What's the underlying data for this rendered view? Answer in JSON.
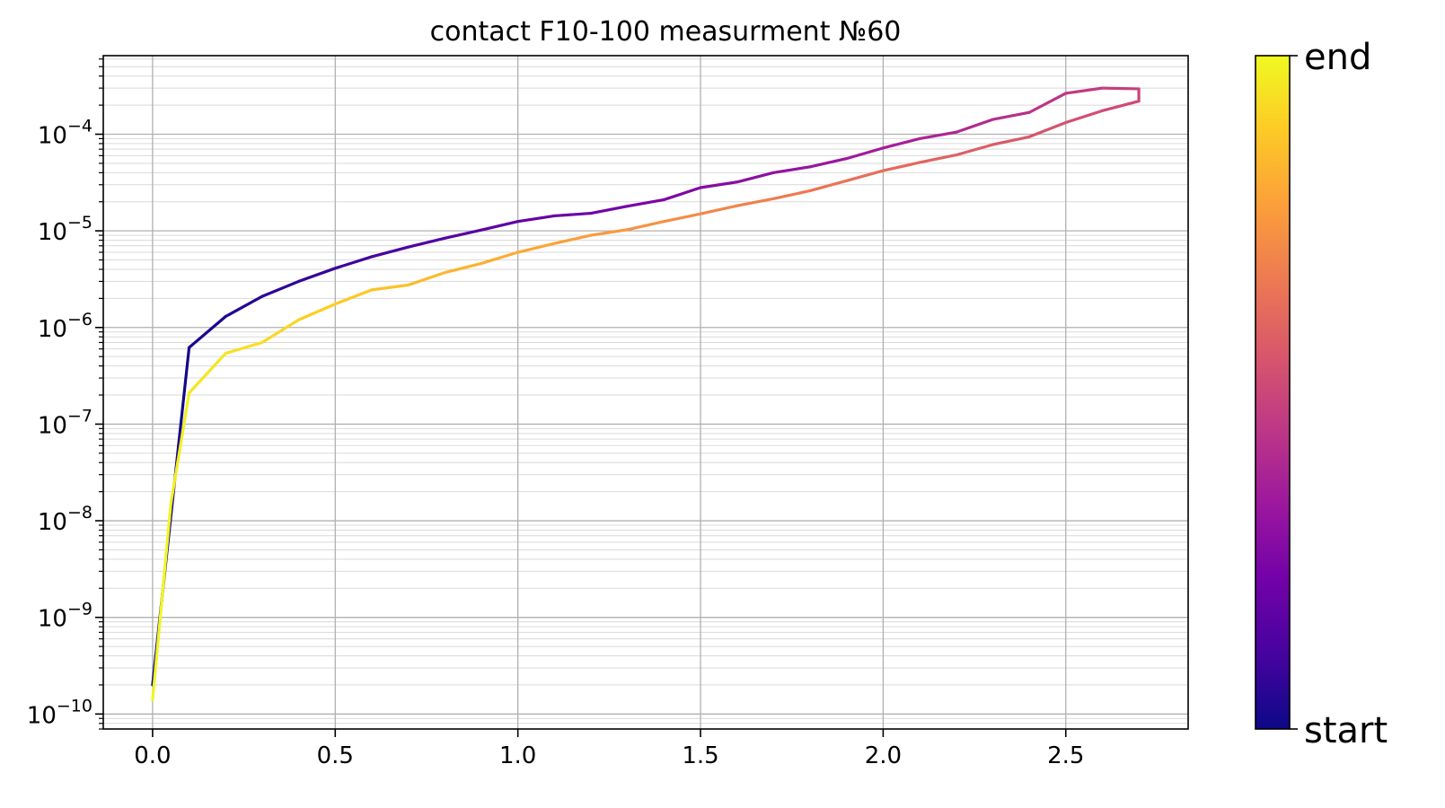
{
  "chart_data": {
    "type": "line",
    "title": "contact F10-100 measurment №60",
    "xlabel": "",
    "ylabel": "",
    "xlim": [
      -0.135,
      2.835
    ],
    "ylim": [
      7e-11,
      0.00065
    ],
    "yscale": "log",
    "grid": "major and minor",
    "x_ticks": [
      {
        "value": 0.0,
        "label": "0.0"
      },
      {
        "value": 0.5,
        "label": "0.5"
      },
      {
        "value": 1.0,
        "label": "1.0"
      },
      {
        "value": 1.5,
        "label": "1.5"
      },
      {
        "value": 2.0,
        "label": "2.0"
      },
      {
        "value": 2.5,
        "label": "2.5"
      }
    ],
    "y_ticks": [
      {
        "value": 1e-10,
        "base": "10",
        "exp": "−10"
      },
      {
        "value": 1e-09,
        "base": "10",
        "exp": "−9"
      },
      {
        "value": 1e-08,
        "base": "10",
        "exp": "−8"
      },
      {
        "value": 1e-07,
        "base": "10",
        "exp": "−7"
      },
      {
        "value": 1e-06,
        "base": "10",
        "exp": "−6"
      },
      {
        "value": 1e-05,
        "base": "10",
        "exp": "−5"
      },
      {
        "value": 0.0001,
        "base": "10",
        "exp": "−4"
      }
    ],
    "colormap": "plasma",
    "colormap_stops": [
      "#0d0887",
      "#46039f",
      "#7201a8",
      "#9c179e",
      "#bd3786",
      "#d8576b",
      "#ed7953",
      "#fb9f3a",
      "#fdca26",
      "#f0f921"
    ],
    "colorbar": {
      "start_label": "start",
      "end_label": "end"
    },
    "series": [
      {
        "x": [
          0.0,
          0.1,
          0.2,
          0.3,
          0.4,
          0.5,
          0.6,
          0.7,
          0.8,
          0.9,
          1.0,
          1.1,
          1.2,
          1.3,
          1.4,
          1.5,
          1.6,
          1.7,
          1.8,
          1.9,
          2.0,
          2.1,
          2.2,
          2.3,
          2.4,
          2.5,
          2.6,
          2.7,
          2.7,
          2.6,
          2.5,
          2.4,
          2.3,
          2.2,
          2.1,
          2.0,
          1.9,
          1.8,
          1.7,
          1.6,
          1.5,
          1.4,
          1.3,
          1.2,
          1.1,
          1.0,
          0.9,
          0.8,
          0.7,
          0.6,
          0.5,
          0.4,
          0.3,
          0.2,
          0.1,
          0.05,
          0.0
        ],
        "y": [
          2e-10,
          6.2e-07,
          1.3e-06,
          2.1e-06,
          3e-06,
          4.1e-06,
          5.4e-06,
          6.8e-06,
          8.4e-06,
          1.02e-05,
          1.25e-05,
          1.43e-05,
          1.52e-05,
          1.8e-05,
          2.1e-05,
          2.8e-05,
          3.2e-05,
          4e-05,
          4.6e-05,
          5.6e-05,
          7.2e-05,
          9e-05,
          0.000105,
          0.000142,
          0.000168,
          0.000265,
          0.0003,
          0.000295,
          0.00022,
          0.000175,
          0.000132,
          9.4e-05,
          7.8e-05,
          6.1e-05,
          5.1e-05,
          4.2e-05,
          3.3e-05,
          2.6e-05,
          2.15e-05,
          1.82e-05,
          1.5e-05,
          1.25e-05,
          1.03e-05,
          9e-06,
          7.4e-06,
          6e-06,
          4.6e-06,
          3.7e-06,
          2.75e-06,
          2.45e-06,
          1.75e-06,
          1.2e-06,
          7e-07,
          5.4e-07,
          2.1e-07,
          1.5e-08,
          1.4e-10
        ]
      }
    ]
  }
}
